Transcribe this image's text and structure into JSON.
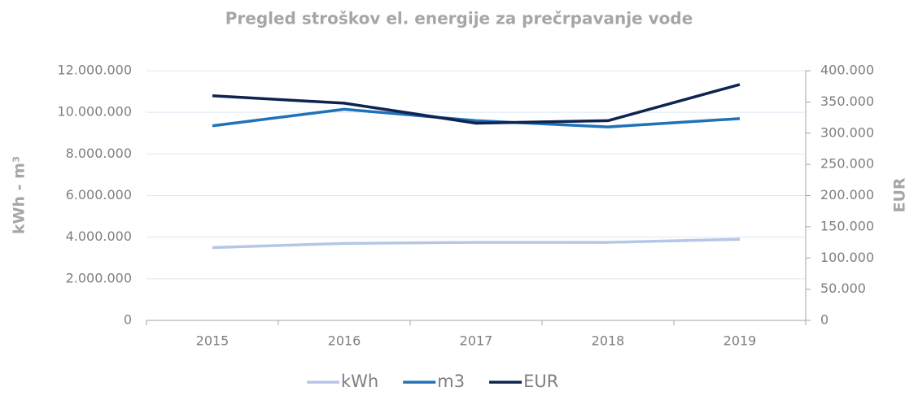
{
  "chart_data": {
    "type": "line",
    "title": "Pregled stroškov el. energije za prečrpavanje vode",
    "y_label": "kWh - m³",
    "y2_label": "EUR",
    "categories": [
      "2015",
      "2016",
      "2017",
      "2018",
      "2019"
    ],
    "series": [
      {
        "name": "kWh",
        "color": "#b4c7e7",
        "values": [
          3500000,
          3700000,
          3750000,
          3750000,
          3900000
        ]
      },
      {
        "name": "m3",
        "color": "#1f72b8",
        "values": [
          9350000,
          10150000,
          9600000,
          9300000,
          9700000
        ]
      },
      {
        "name": "EUR",
        "color": "#0e2350",
        "axis": "y2",
        "values": [
          360000,
          348000,
          316000,
          320000,
          378000
        ]
      }
    ],
    "ylim": [
      0,
      12000000
    ],
    "yticks": [
      0,
      {
        "value": 2000000,
        "label": "2.000.000"
      },
      {
        "value": 4000000,
        "label": "4.000.000"
      },
      {
        "value": 6000000,
        "label": "6.000.000"
      },
      {
        "value": 8000000,
        "label": "8.000.000"
      },
      {
        "value": 10000000,
        "label": "10.000.000"
      },
      {
        "value": 12000000,
        "label": "12.000.000"
      }
    ],
    "y2lim": [
      0,
      400000
    ],
    "y2ticks": [
      0,
      {
        "value": 50000,
        "label": "50.000"
      },
      {
        "value": 100000,
        "label": "100.000"
      },
      {
        "value": 150000,
        "label": "150.000"
      },
      {
        "value": 200000,
        "label": "200.000"
      },
      {
        "value": 250000,
        "label": "250.000"
      },
      {
        "value": 300000,
        "label": "300.000"
      },
      {
        "value": 350000,
        "label": "350.000"
      },
      {
        "value": 400000,
        "label": "400.000"
      }
    ],
    "grid": true,
    "legend": "bottom"
  }
}
